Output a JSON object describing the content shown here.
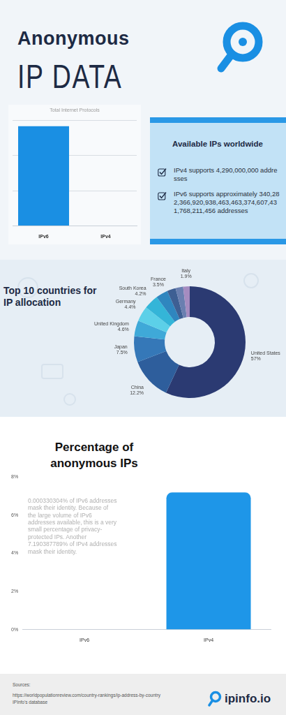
{
  "header": {
    "title": "Anonymous",
    "subtitle": "IP DATA"
  },
  "info_box": {
    "title": "Available IPs worldwide",
    "items": [
      "IPv4 supports 4,290,000,000 addresses",
      "IPv6 supports approximately 340,282,366,920,938,463,463,374,607,431,768,211,456 addresses"
    ]
  },
  "chart_data": [
    {
      "type": "bar",
      "title": "Total Internet Protocols",
      "categories": [
        "IPv6",
        "IPv4"
      ],
      "values": [
        340282366920938463463374607431768211456,
        4290000000
      ],
      "color": "#1a8fe3",
      "ylim": [
        0,
        3.6e+38
      ],
      "yticks": [
        0,
        1.2e+38,
        2.4e+38,
        3.6e+38
      ],
      "grid": true,
      "tick_labels": "x"
    },
    {
      "type": "doughnut",
      "title": "Top 10 countries for IP allocation",
      "categories": [
        "United States",
        "China",
        "Japan",
        "United Kingdom",
        "Germany",
        "South Korea",
        "France",
        null,
        null,
        "Italy"
      ],
      "values": [
        57,
        12.2,
        7.5,
        4.6,
        4.4,
        4.2,
        3.5,
        2.5,
        2.2,
        1.9
      ],
      "value_labels": [
        "57%",
        "12.2%",
        "7.5%",
        "4.6%",
        "4.4%",
        "4.2%",
        "3.5%",
        null,
        null,
        "1.9%"
      ],
      "colors": [
        "#2b3a72",
        "#2e5e9c",
        "#3578b8",
        "#3fa9d8",
        "#5cd0e8",
        "#34b5d8",
        "#2f86bf",
        "#3e5f93",
        "#6a7fb0",
        "#a58cc0"
      ],
      "data_labels": true
    },
    {
      "type": "bar",
      "title": "Percentage of anonymous IPs",
      "categories": [
        "IPv6",
        "IPv4"
      ],
      "values": [
        0.000330304,
        7.190387789
      ],
      "color": "#1e96e8",
      "ylim": [
        0,
        8
      ],
      "yticks": [
        {
          "value": 0,
          "label": "0%"
        },
        {
          "value": 2,
          "label": "2%"
        },
        {
          "value": 4,
          "label": "4%"
        },
        {
          "value": 6,
          "label": "6%"
        },
        {
          "value": 8,
          "label": "8%"
        }
      ],
      "grid": false,
      "annotation": "0.000330304% of IPv6 addresses mask their identity. Because of the large volume of IPv6 addresses available, this is a very small percentage of privacy-protected IPs. Another 7.190387789% of IPv4 addresses mask their identity."
    }
  ],
  "sources": {
    "label": "Sources:",
    "items": [
      "https://worldpopulationreview.com/country-rankings/ip-address-by-country",
      "IPInfo's database"
    ]
  },
  "brand": "ipinfo.io"
}
